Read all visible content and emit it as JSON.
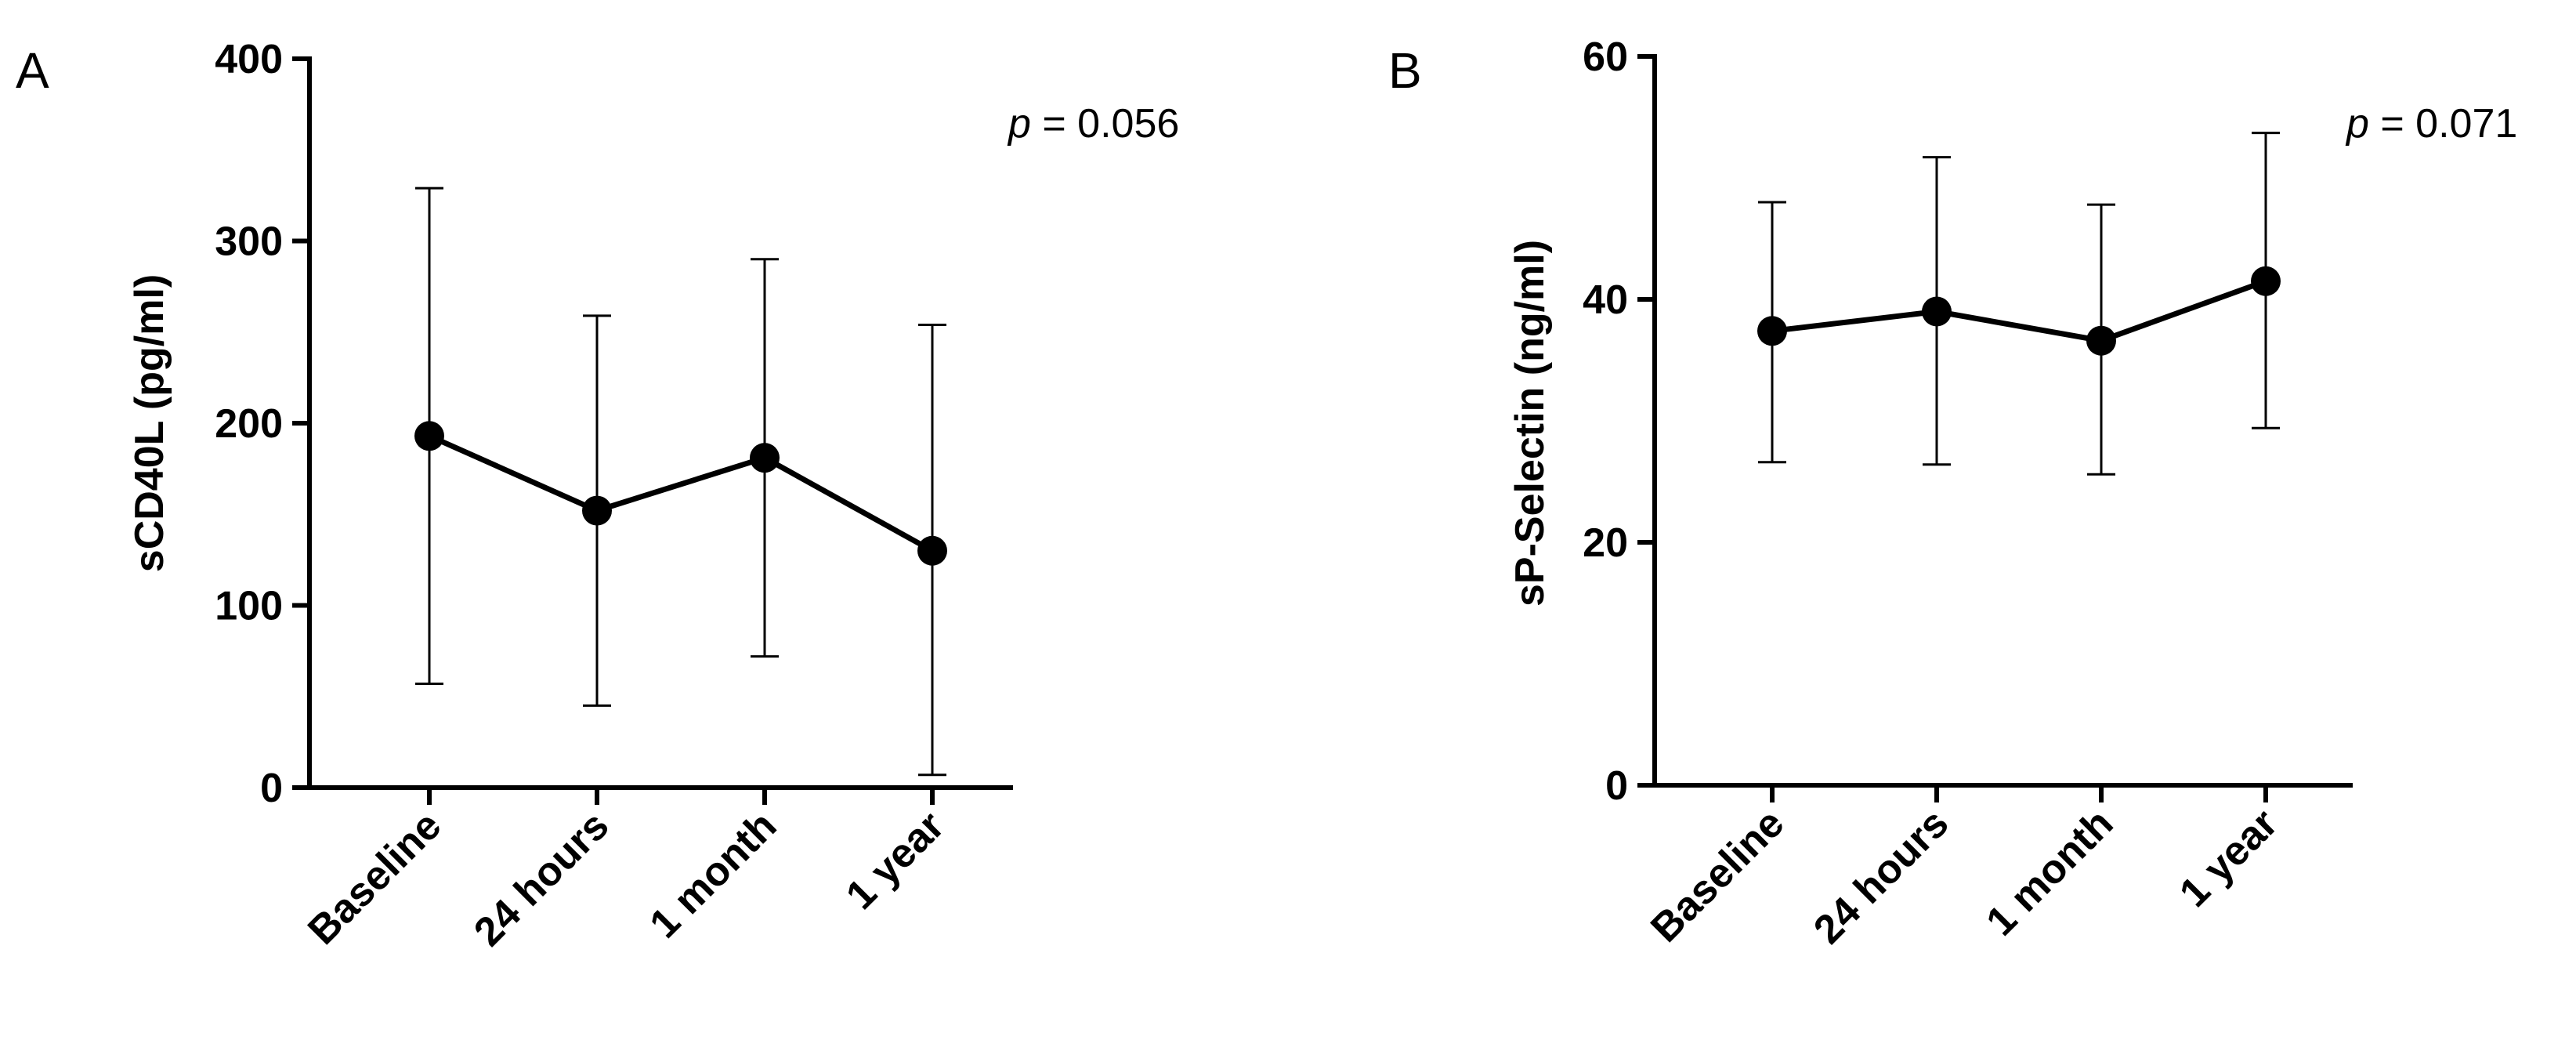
{
  "chart_data": [
    {
      "type": "line",
      "panel": "A",
      "title": "",
      "xlabel": "",
      "ylabel": "sCD40L (pg/ml)",
      "categories": [
        "Baseline",
        "24 hours",
        "1 month",
        "1 year"
      ],
      "ylim": [
        0,
        400
      ],
      "yticks": [
        0,
        100,
        200,
        300,
        400
      ],
      "series": [
        {
          "values": [
            193,
            152,
            181,
            130
          ],
          "error_lower": [
            57,
            45,
            72,
            7
          ],
          "error_upper": [
            329,
            259,
            290,
            254
          ]
        }
      ],
      "annotation": {
        "prefix": "p",
        "text": " = 0.056"
      },
      "grid": false,
      "legend": "none"
    },
    {
      "type": "line",
      "panel": "B",
      "title": "",
      "xlabel": "",
      "ylabel": "sP-Selectin (ng/ml)",
      "categories": [
        "Baseline",
        "24 hours",
        "1 month",
        "1 year"
      ],
      "ylim": [
        0,
        60
      ],
      "yticks": [
        0,
        20,
        40,
        60
      ],
      "series": [
        {
          "values": [
            37.4,
            39.0,
            36.6,
            41.5
          ],
          "error_lower": [
            26.6,
            26.4,
            25.6,
            29.4
          ],
          "error_upper": [
            48.0,
            51.7,
            47.8,
            53.7
          ]
        }
      ],
      "annotation": {
        "prefix": "p",
        "text": " = 0.071"
      },
      "grid": false,
      "legend": "none"
    }
  ]
}
